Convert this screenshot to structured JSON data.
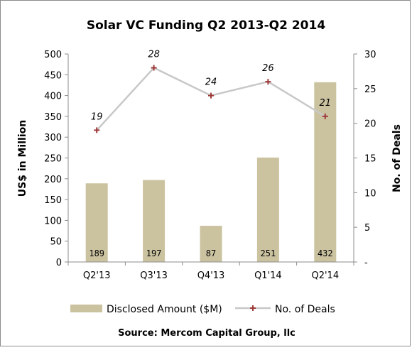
{
  "chart_data": {
    "type": "bar",
    "title": "Solar VC Funding Q2 2013-Q2 2014",
    "categories": [
      "Q2'13",
      "Q3'13",
      "Q4'13",
      "Q1'14",
      "Q2'14"
    ],
    "series": [
      {
        "name": "Disclosed Amount ($M)",
        "type": "bar",
        "axis": "left",
        "color": "#cbc3a0",
        "values": [
          189,
          197,
          87,
          251,
          432
        ],
        "labels": [
          "189",
          "197",
          "87",
          "251",
          "432"
        ]
      },
      {
        "name": "No. of Deals",
        "type": "line",
        "axis": "right",
        "color": "#c8c8c8",
        "marker_color": "#9e3a3a",
        "values": [
          19,
          28,
          24,
          26,
          21
        ],
        "labels": [
          "19",
          "28",
          "24",
          "26",
          "21"
        ]
      }
    ],
    "ylabel": "US$ in Million",
    "ylim": [
      0,
      500
    ],
    "yticks": [
      "0",
      "50",
      "100",
      "150",
      "200",
      "250",
      "300",
      "350",
      "400",
      "450",
      "500"
    ],
    "y2label": "No. of Deals",
    "y2lim": [
      0,
      30
    ],
    "y2ticks": [
      "-",
      "5",
      "10",
      "15",
      "20",
      "25",
      "30"
    ],
    "grid": false,
    "legend": "bottom",
    "source": "Source: Mercom Capital Group, llc"
  }
}
